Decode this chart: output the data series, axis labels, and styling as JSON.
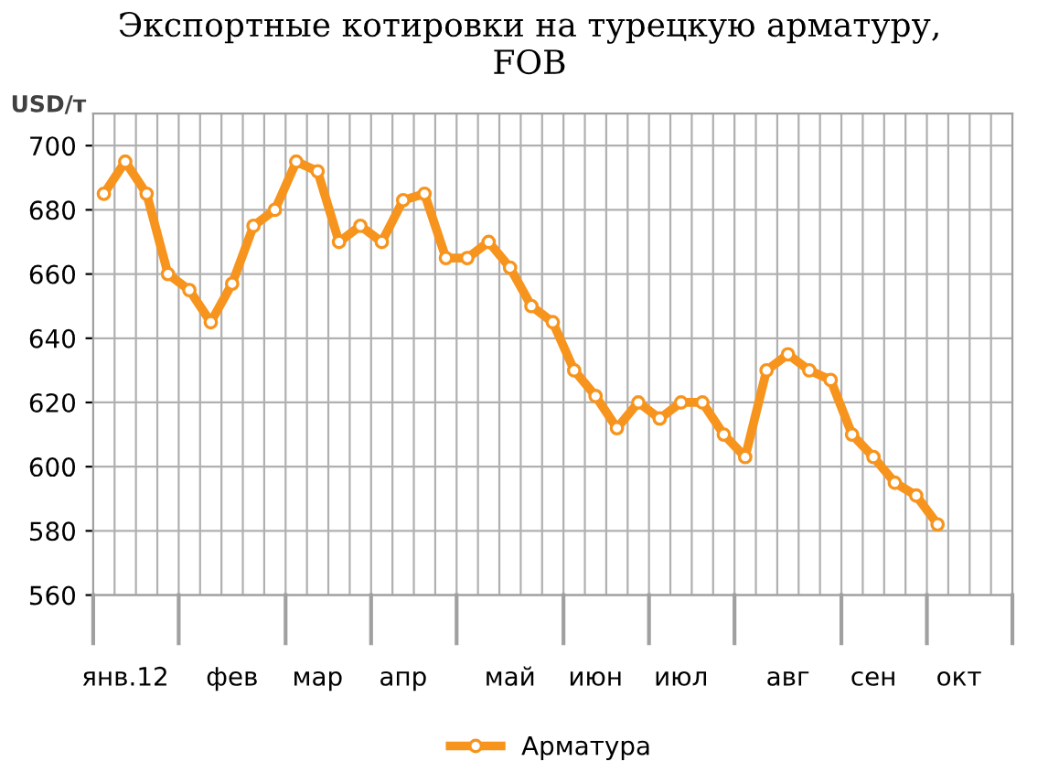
{
  "chart_data": {
    "type": "line",
    "title": "Экспортные котировки на турецкую арматуру,\nFOB",
    "ylabel": "USD/т",
    "categories": [
      null,
      "янв.12",
      null,
      null,
      null,
      null,
      "фев",
      null,
      null,
      null,
      "мар",
      null,
      null,
      null,
      "апр",
      null,
      null,
      null,
      null,
      "май",
      null,
      null,
      null,
      "июн",
      null,
      null,
      null,
      "июл",
      null,
      null,
      null,
      null,
      "авг",
      null,
      null,
      null,
      "сен",
      null,
      null,
      null,
      "окт",
      null,
      null
    ],
    "series": [
      {
        "name": "Арматура",
        "color": "#f7941d",
        "values": [
          685,
          695,
          685,
          660,
          655,
          645,
          657,
          675,
          680,
          695,
          692,
          670,
          675,
          670,
          683,
          685,
          665,
          665,
          670,
          662,
          650,
          645,
          630,
          622,
          612,
          620,
          615,
          620,
          620,
          610,
          603,
          630,
          635,
          630,
          627,
          610,
          603,
          595,
          591,
          582,
          null,
          null,
          null
        ]
      }
    ],
    "ylim": [
      560,
      710
    ],
    "yticks": [
      560,
      580,
      600,
      620,
      640,
      660,
      680,
      700
    ],
    "grid": true,
    "legend": "bottom",
    "marker": "circle",
    "line_style": "solid"
  }
}
